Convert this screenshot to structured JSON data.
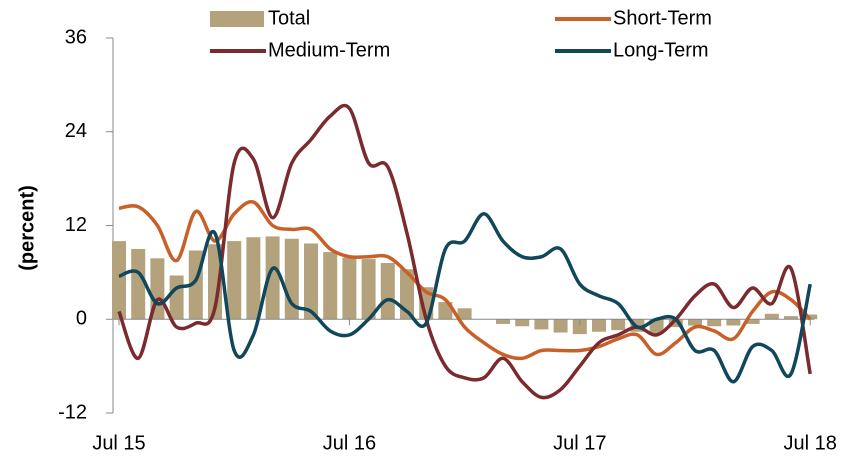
{
  "chart_data": {
    "type": "combo",
    "y_label": "(percent)",
    "categories": [
      "Jul 15",
      null,
      null,
      null,
      null,
      null,
      null,
      null,
      null,
      null,
      null,
      null,
      "Jul 16",
      null,
      null,
      null,
      null,
      null,
      null,
      null,
      null,
      null,
      null,
      null,
      "Jul 17",
      null,
      null,
      null,
      null,
      null,
      null,
      null,
      null,
      null,
      null,
      null,
      "Jul 18"
    ],
    "ylim": [
      -12,
      36
    ],
    "yticks": [
      -12,
      0,
      12,
      24,
      36
    ],
    "series": [
      {
        "name": "Total",
        "type": "bar",
        "color": "#b3a27c",
        "values": [
          10,
          9,
          7.8,
          5.6,
          8.8,
          9.6,
          10,
          10.5,
          10.6,
          10.3,
          9.7,
          8.6,
          7.9,
          7.7,
          7.2,
          6.4,
          4.1,
          2.2,
          1.4,
          0,
          -0.6,
          -0.9,
          -1.3,
          -1.7,
          -1.9,
          -1.6,
          -1.4,
          -1.6,
          -1.8,
          -1,
          -0.8,
          -0.9,
          -0.8,
          -0.6,
          0.7,
          0.4,
          0.6
        ]
      },
      {
        "name": "Short-Term",
        "type": "line",
        "color": "#c9602a",
        "values": [
          14.2,
          14.4,
          12,
          7.5,
          13.8,
          10,
          13.5,
          15,
          12,
          11.5,
          11.5,
          9,
          8,
          8,
          8,
          6,
          3.5,
          2.5,
          -1,
          -3,
          -4.5,
          -5,
          -4,
          -4,
          -4,
          -3.5,
          -2.5,
          -2,
          -4.5,
          -3,
          -1,
          -1.5,
          -2.5,
          1,
          3.5,
          2.5,
          0
        ]
      },
      {
        "name": "Medium-Term",
        "type": "line",
        "color": "#7b2a2e",
        "values": [
          1,
          -5,
          2.5,
          -1,
          -0.5,
          1.5,
          20,
          20.5,
          13,
          20,
          23,
          26,
          27,
          20,
          19.5,
          11,
          0,
          -6,
          -7.5,
          -7.5,
          -5,
          -8,
          -10,
          -9,
          -6,
          -3,
          -2,
          -1,
          -2,
          0,
          3,
          4.5,
          1.5,
          4,
          2,
          6.5,
          -7
        ]
      },
      {
        "name": "Long-Term",
        "type": "line",
        "color": "#10475a",
        "values": [
          5.5,
          6,
          2,
          4,
          5,
          11,
          -4,
          -2,
          6.5,
          2,
          1,
          -1.5,
          -2,
          0,
          2.5,
          1,
          -0.5,
          9,
          10,
          13.5,
          10,
          8,
          8,
          9,
          4.5,
          3,
          2,
          -1,
          0,
          0,
          -4,
          -4,
          -8,
          -3.5,
          -4,
          -7,
          4.5
        ]
      }
    ]
  }
}
